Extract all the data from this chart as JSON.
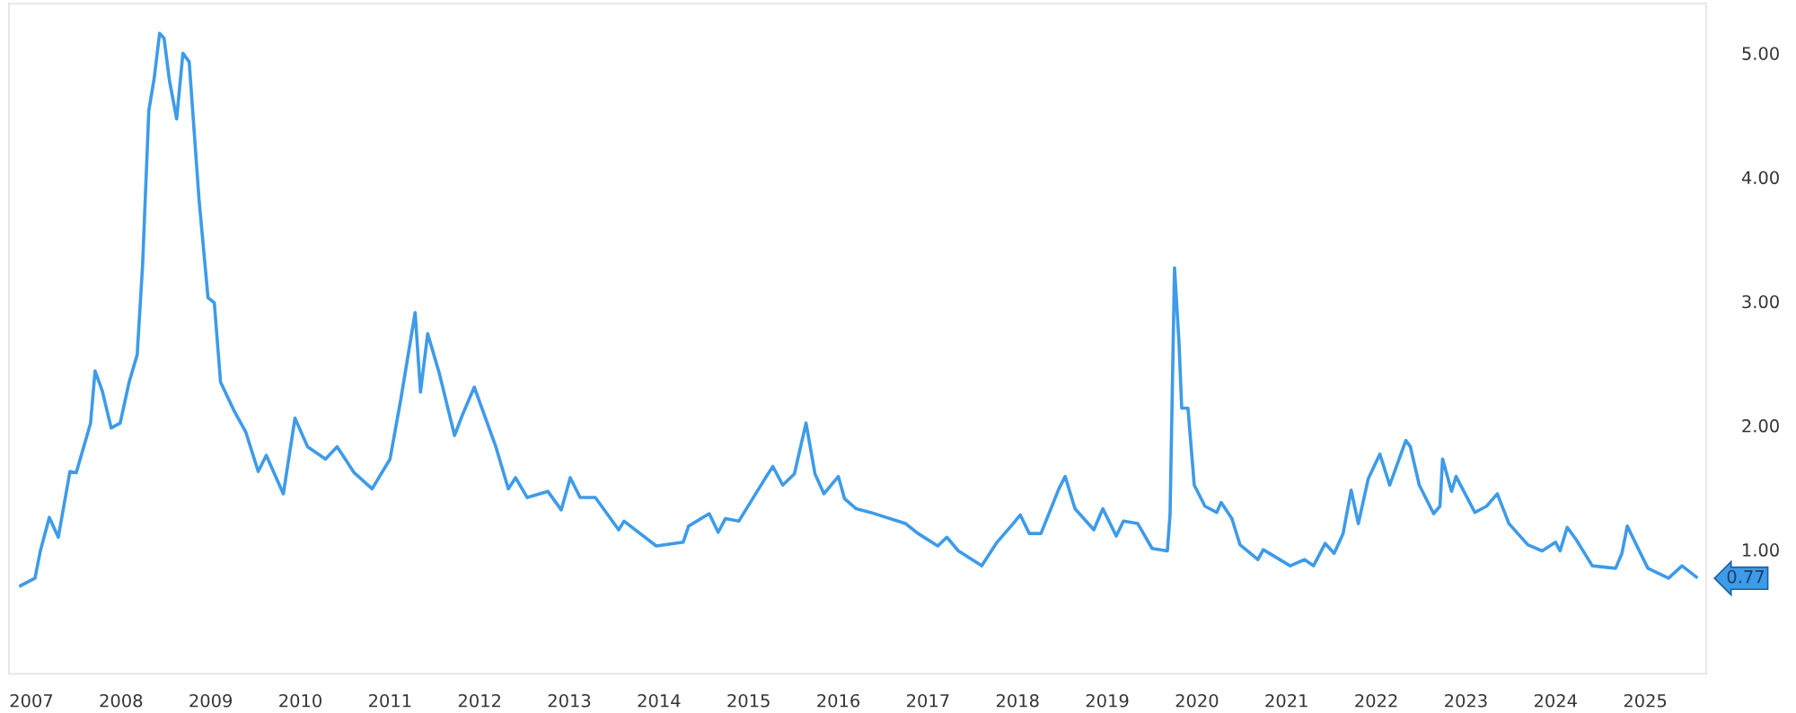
{
  "chart_data": {
    "type": "line",
    "xlim": [
      2006.75,
      2025.68
    ],
    "ylim": [
      0,
      5.4
    ],
    "xticks": [
      2007,
      2008,
      2009,
      2010,
      2011,
      2012,
      2013,
      2014,
      2015,
      2016,
      2017,
      2018,
      2019,
      2020,
      2021,
      2022,
      2023,
      2024,
      2025
    ],
    "yticks": [
      {
        "value": 1,
        "label": "1.00"
      },
      {
        "value": 2,
        "label": "2.00"
      },
      {
        "value": 3,
        "label": "3.00"
      },
      {
        "value": 4,
        "label": "4.00"
      },
      {
        "value": 5,
        "label": "5.00"
      }
    ],
    "grid": false,
    "legend": false,
    "marker": "none",
    "line_style": "solid",
    "annotations": [
      {
        "text": "0.77",
        "x": 2025.57,
        "y": 0.77
      }
    ],
    "series": [
      {
        "color": "#3d9be9",
        "x": [
          2006.88,
          2007.04,
          2007.1,
          2007.2,
          2007.3,
          2007.43,
          2007.5,
          2007.66,
          2007.71,
          2007.79,
          2007.89,
          2007.99,
          2008.09,
          2008.18,
          2008.24,
          2008.31,
          2008.37,
          2008.43,
          2008.48,
          2008.54,
          2008.62,
          2008.69,
          2008.76,
          2008.87,
          2008.97,
          2009.04,
          2009.11,
          2009.26,
          2009.39,
          2009.53,
          2009.62,
          2009.81,
          2009.94,
          2010.08,
          2010.28,
          2010.41,
          2010.6,
          2010.8,
          2011.0,
          2011.12,
          2011.28,
          2011.34,
          2011.42,
          2011.55,
          2011.72,
          2011.81,
          2011.94,
          2012.18,
          2012.32,
          2012.4,
          2012.53,
          2012.76,
          2012.91,
          2013.01,
          2013.12,
          2013.29,
          2013.55,
          2013.61,
          2013.97,
          2014.27,
          2014.33,
          2014.56,
          2014.66,
          2014.74,
          2014.89,
          2015.18,
          2015.27,
          2015.38,
          2015.51,
          2015.64,
          2015.74,
          2015.84,
          2016.0,
          2016.07,
          2016.2,
          2016.36,
          2016.75,
          2016.89,
          2017.11,
          2017.21,
          2017.34,
          2017.6,
          2017.77,
          2017.95,
          2018.03,
          2018.13,
          2018.26,
          2018.46,
          2018.53,
          2018.64,
          2018.85,
          2018.95,
          2019.1,
          2019.18,
          2019.34,
          2019.5,
          2019.67,
          2019.7,
          2019.75,
          2019.8,
          2019.83,
          2019.9,
          2019.97,
          2020.09,
          2020.22,
          2020.27,
          2020.39,
          2020.48,
          2020.68,
          2020.74,
          2021.04,
          2021.2,
          2021.3,
          2021.43,
          2021.53,
          2021.63,
          2021.72,
          2021.8,
          2021.91,
          2022.04,
          2022.15,
          2022.22,
          2022.33,
          2022.38,
          2022.48,
          2022.64,
          2022.71,
          2022.74,
          2022.84,
          2022.89,
          2023.1,
          2023.23,
          2023.35,
          2023.48,
          2023.69,
          2023.85,
          2024.0,
          2024.05,
          2024.13,
          2024.23,
          2024.41,
          2024.67,
          2024.74,
          2024.8,
          2024.9,
          2025.03,
          2025.26,
          2025.41,
          2025.57
        ],
        "values": [
          0.71,
          0.77,
          0.99,
          1.26,
          1.1,
          1.63,
          1.62,
          2.02,
          2.44,
          2.28,
          1.98,
          2.02,
          2.35,
          2.57,
          3.29,
          4.54,
          4.8,
          5.16,
          5.12,
          4.78,
          4.47,
          5.0,
          4.93,
          3.82,
          3.03,
          2.99,
          2.35,
          2.12,
          1.95,
          1.63,
          1.76,
          1.45,
          2.06,
          1.83,
          1.73,
          1.83,
          1.62,
          1.49,
          1.73,
          2.21,
          2.91,
          2.27,
          2.74,
          2.42,
          1.92,
          2.09,
          2.31,
          1.83,
          1.49,
          1.58,
          1.42,
          1.47,
          1.32,
          1.58,
          1.42,
          1.42,
          1.16,
          1.23,
          1.03,
          1.06,
          1.19,
          1.29,
          1.14,
          1.25,
          1.23,
          1.57,
          1.67,
          1.52,
          1.61,
          2.02,
          1.61,
          1.45,
          1.59,
          1.41,
          1.33,
          1.3,
          1.21,
          1.13,
          1.03,
          1.1,
          0.99,
          0.87,
          1.06,
          1.21,
          1.28,
          1.13,
          1.13,
          1.49,
          1.59,
          1.33,
          1.16,
          1.33,
          1.11,
          1.23,
          1.21,
          1.01,
          0.99,
          1.28,
          3.27,
          2.67,
          2.14,
          2.14,
          1.52,
          1.35,
          1.3,
          1.38,
          1.25,
          1.04,
          0.92,
          1.0,
          0.87,
          0.92,
          0.87,
          1.05,
          0.97,
          1.13,
          1.48,
          1.21,
          1.57,
          1.77,
          1.52,
          1.66,
          1.88,
          1.83,
          1.52,
          1.29,
          1.35,
          1.73,
          1.47,
          1.59,
          1.3,
          1.35,
          1.45,
          1.21,
          1.04,
          0.99,
          1.06,
          0.99,
          1.18,
          1.08,
          0.87,
          0.85,
          0.97,
          1.19,
          1.04,
          0.85,
          0.77,
          0.87,
          0.78
        ]
      }
    ]
  }
}
